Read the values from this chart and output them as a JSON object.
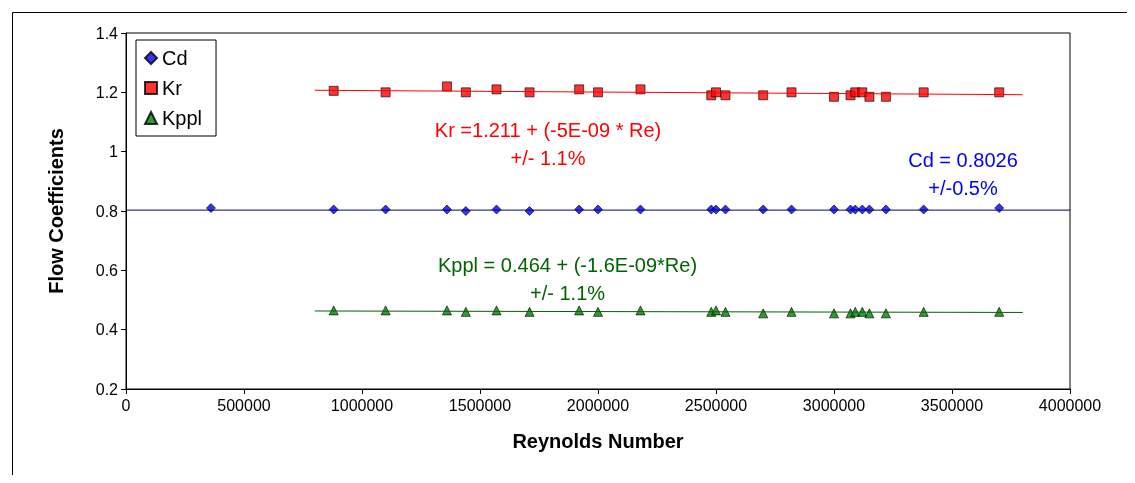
{
  "chart_data": {
    "type": "scatter",
    "xlabel": "Reynolds Number",
    "ylabel": "Flow Coefficients",
    "xlim": [
      0,
      4000000
    ],
    "xticks": [
      0,
      500000,
      1000000,
      1500000,
      2000000,
      2500000,
      3000000,
      3500000,
      4000000
    ],
    "ylim": [
      0.2,
      1.4
    ],
    "yticks": [
      0.2,
      0.4,
      0.6,
      0.8,
      1,
      1.2,
      1.4
    ],
    "grid": false,
    "legend": "top left",
    "x": [
      360000,
      880000,
      1100000,
      1360000,
      1440000,
      1570000,
      1710000,
      1920000,
      2000000,
      2180000,
      2480000,
      2500000,
      2540000,
      2700000,
      2820000,
      3000000,
      3070000,
      3090000,
      3120000,
      3150000,
      3220000,
      3380000,
      3700000
    ],
    "series": [
      {
        "name": "Cd",
        "color": "#0000ff",
        "marker": "diamond",
        "values": [
          0.81,
          0.805,
          0.805,
          0.805,
          0.8,
          0.805,
          0.8,
          0.805,
          0.805,
          0.805,
          0.805,
          0.805,
          0.805,
          0.805,
          0.805,
          0.805,
          0.805,
          0.805,
          0.805,
          0.805,
          0.805,
          0.805,
          0.81
        ]
      },
      {
        "name": "Kr",
        "color": "#ff0000",
        "marker": "square",
        "values": [
          null,
          1.205,
          1.2,
          1.22,
          1.2,
          1.21,
          1.2,
          1.21,
          1.2,
          1.21,
          1.19,
          1.2,
          1.19,
          1.19,
          1.2,
          1.185,
          1.19,
          1.2,
          1.2,
          1.185,
          1.185,
          1.2,
          1.2
        ]
      },
      {
        "name": "Kppl",
        "color": "#008000",
        "marker": "triangle",
        "values": [
          null,
          0.465,
          0.465,
          0.465,
          0.46,
          0.465,
          0.46,
          0.465,
          0.46,
          0.465,
          0.46,
          0.465,
          0.46,
          0.455,
          0.46,
          0.455,
          0.455,
          0.46,
          0.46,
          0.455,
          0.455,
          0.46,
          0.46
        ]
      },
      {
        "type": "line",
        "color": "#000080",
        "marker": "none",
        "x": [
          0,
          4000000
        ],
        "values": [
          0.803,
          0.803
        ]
      },
      {
        "type": "line",
        "color": "#ff0000",
        "marker": "none",
        "x": [
          800000,
          3800000
        ],
        "values": [
          1.207,
          1.192
        ]
      },
      {
        "type": "line",
        "color": "#006400",
        "marker": "none",
        "x": [
          800000,
          3800000
        ],
        "values": [
          0.463,
          0.458
        ]
      }
    ],
    "annotations": [
      "Kr =1.211 + (-5E-09 * Re)\n+/- 1.1%",
      "Cd = 0.8026\n+/-0.5%",
      "Kppl = 0.464 + (-1.6E-09*Re)\n+/- 1.1%"
    ]
  }
}
